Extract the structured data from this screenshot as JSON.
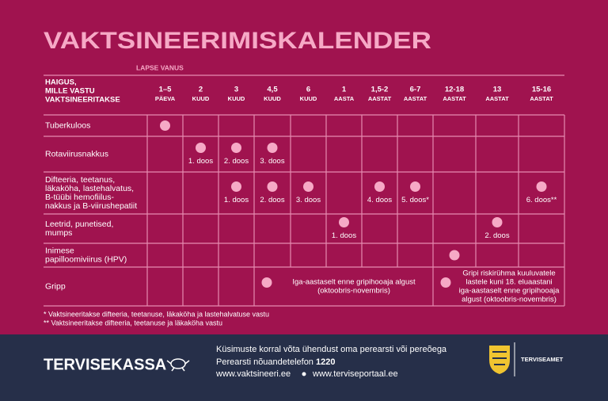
{
  "title": "VAKTSINEERIMISKALENDER",
  "age_label": "LAPSE VANUS",
  "table": {
    "header": [
      "HAIGUS,",
      "MILLE VASTU",
      "VAKTSINEERITAKSE"
    ],
    "columns": [
      {
        "top": "1–5",
        "bottom": "PÄEVA"
      },
      {
        "top": "2",
        "bottom": "KUUD"
      },
      {
        "top": "3",
        "bottom": "KUUD"
      },
      {
        "top": "4,5",
        "bottom": "KUUD"
      },
      {
        "top": "6",
        "bottom": "KUUD"
      },
      {
        "top": "1",
        "bottom": "AASTA"
      },
      {
        "top": "1,5-2",
        "bottom": "AASTAT"
      },
      {
        "top": "6-7",
        "bottom": "AASTAT"
      },
      {
        "top": "12-18",
        "bottom": "AASTAT"
      },
      {
        "top": "13",
        "bottom": "AASTAT"
      },
      {
        "top": "15-16",
        "bottom": "AASTAT"
      }
    ],
    "rows": [
      {
        "name": [
          "Tuberkuloos"
        ],
        "cells": [
          {
            "dot": true
          },
          null,
          null,
          null,
          null,
          null,
          null,
          null,
          null,
          null,
          null
        ]
      },
      {
        "name": [
          "Rotaviirusnakkus"
        ],
        "cells": [
          null,
          {
            "dot": true,
            "label": [
              "1. doos"
            ]
          },
          {
            "dot": true,
            "label": [
              "2. doos"
            ]
          },
          {
            "dot": true,
            "label": [
              "3. doos"
            ]
          },
          null,
          null,
          null,
          null,
          null,
          null,
          null
        ]
      },
      {
        "name": [
          "Difteeria, teetanus,",
          "läkaköha, lastehalvatus,",
          "B-tüübi hemofiilus-",
          "nakkus ja B-viirushepatiit"
        ],
        "cells": [
          null,
          null,
          {
            "dot": true,
            "label": [
              "1. doos"
            ]
          },
          {
            "dot": true,
            "label": [
              "2. doos"
            ]
          },
          {
            "dot": true,
            "label": [
              "3. doos"
            ]
          },
          null,
          {
            "dot": true,
            "label": [
              "4. doos"
            ]
          },
          {
            "dot": true,
            "label": [
              "5. doos*"
            ]
          },
          null,
          null,
          {
            "dot": true,
            "label": [
              "6. doos**"
            ]
          }
        ]
      },
      {
        "name": [
          "Leetrid, punetised,",
          "mumps"
        ],
        "cells": [
          null,
          null,
          null,
          null,
          null,
          {
            "dot": true,
            "label": [
              "1. doos"
            ]
          },
          null,
          null,
          null,
          {
            "dot": true,
            "label": [
              "2. doos"
            ]
          },
          null
        ]
      },
      {
        "name": [
          "Inimese",
          "papilloomiviirus (HPV)"
        ],
        "cells": [
          null,
          null,
          null,
          null,
          null,
          null,
          null,
          null,
          {
            "dot": true
          },
          null,
          null
        ]
      },
      {
        "name": [
          "Gripp"
        ],
        "cells": [
          null,
          null,
          null,
          {
            "dot": true,
            "span": 5,
            "note": [
              "Iga-aastaselt enne gripihooaja algust",
              "(oktoobris-novembris)"
            ]
          },
          {
            "dot": true,
            "span": 3,
            "note": [
              "Gripi riskirühma kuuluvatele",
              "lastele kuni 18. eluaastani",
              "iga-aastaselt enne gripihooaja",
              "algust (oktoobris-novembris)"
            ]
          }
        ]
      }
    ]
  },
  "footnotes": [
    "* Vaktsineeritakse difteeria, teetanuse, läkaköha ja lastehalvatuse vastu",
    "** Vaktsineeritakse difteeria, teetanuse ja läkaköha vastu"
  ],
  "footer": {
    "brand": "TERVISEKASSA",
    "contact": "Küsimuste korral võta ühendust oma perearsti või pereõega",
    "phone_label": "Perearsti nõuandetelefon",
    "phone_number": "1220",
    "websites": [
      "www.vaktsineeri.ee",
      "www.terviseportaal.ee"
    ],
    "partner": "TERVISEAMET"
  }
}
